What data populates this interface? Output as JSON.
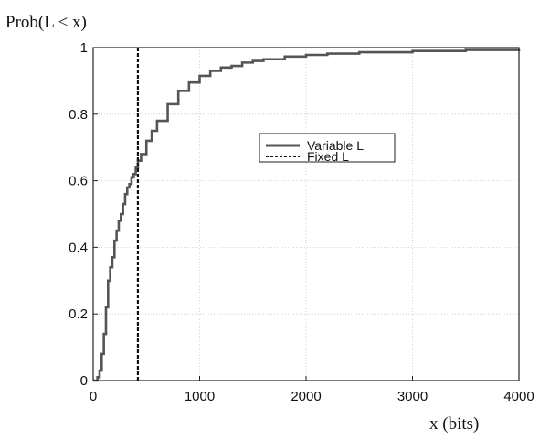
{
  "chart_data": {
    "type": "line",
    "ylabel_top": "Prob(L ≤ x)",
    "xlabel": "x (bits)",
    "xlim": [
      0,
      4000
    ],
    "ylim": [
      0,
      1
    ],
    "x_ticks": [
      0,
      1000,
      2000,
      3000,
      4000
    ],
    "y_ticks": [
      0,
      0.2,
      0.4,
      0.6,
      0.8,
      1
    ],
    "x_tick_labels": [
      "0",
      "1000",
      "2000",
      "3000",
      "4000"
    ],
    "y_tick_labels": [
      "0",
      "0.2",
      "0.4",
      "0.6",
      "0.8",
      "1"
    ],
    "grid": true,
    "legend_position": "center-right",
    "series": [
      {
        "name": "Variable L",
        "style": "solid",
        "color": "#555555",
        "step": true,
        "x": [
          0,
          40,
          60,
          80,
          100,
          120,
          140,
          160,
          180,
          200,
          220,
          240,
          260,
          280,
          300,
          320,
          340,
          360,
          380,
          400,
          420,
          450,
          500,
          550,
          600,
          700,
          800,
          900,
          1000,
          1100,
          1200,
          1300,
          1400,
          1500,
          1600,
          1800,
          2000,
          2200,
          2500,
          3000,
          3500,
          4000
        ],
        "y": [
          0,
          0.01,
          0.03,
          0.08,
          0.14,
          0.22,
          0.3,
          0.34,
          0.37,
          0.42,
          0.45,
          0.48,
          0.5,
          0.53,
          0.56,
          0.58,
          0.59,
          0.61,
          0.62,
          0.64,
          0.66,
          0.68,
          0.72,
          0.75,
          0.78,
          0.83,
          0.87,
          0.895,
          0.915,
          0.93,
          0.94,
          0.945,
          0.955,
          0.96,
          0.965,
          0.973,
          0.978,
          0.982,
          0.986,
          0.99,
          0.993,
          0.995
        ]
      },
      {
        "name": "Fixed L",
        "style": "dashed",
        "color": "#111111",
        "x": [
          420,
          420
        ],
        "y": [
          0,
          1
        ]
      }
    ]
  }
}
